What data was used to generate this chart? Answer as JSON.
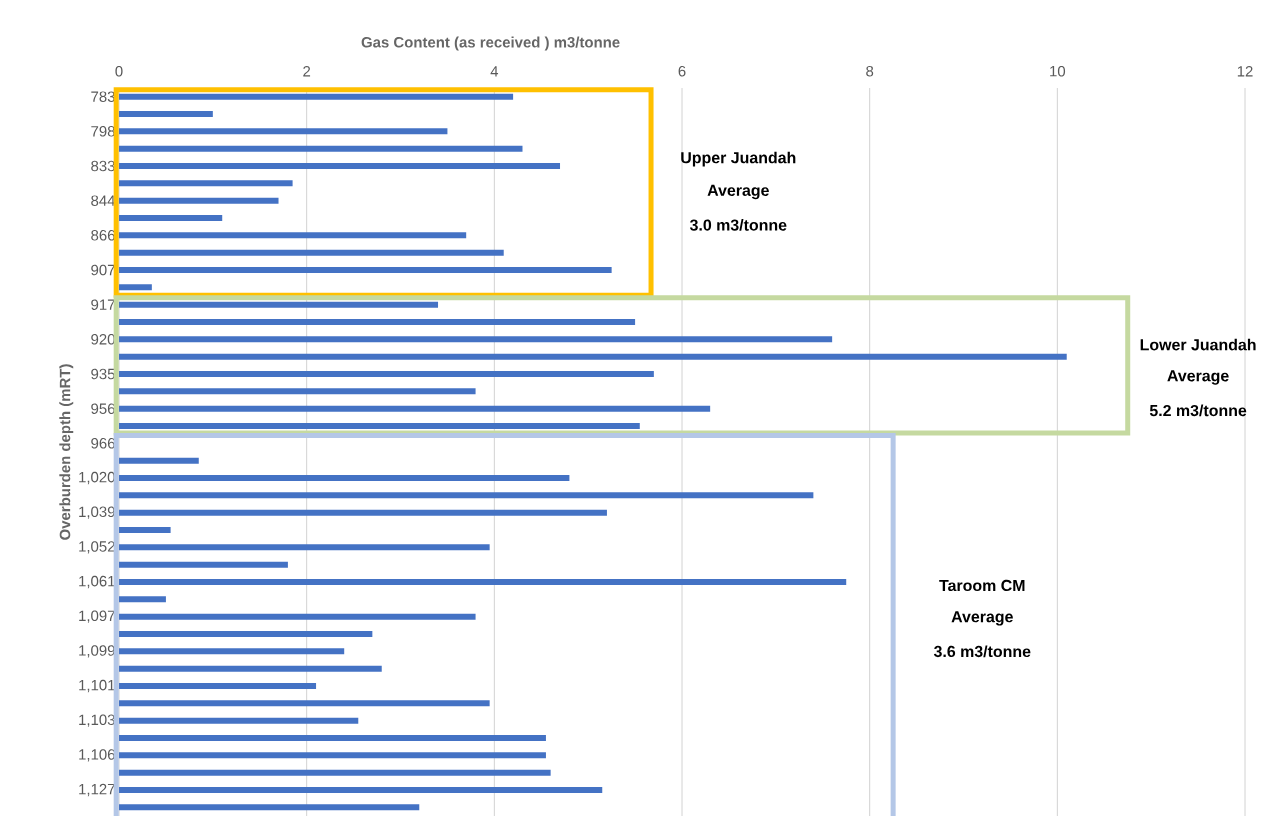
{
  "chart_data": {
    "type": "bar",
    "orientation": "horizontal",
    "xlabel": "Gas Content (as received ) m3/tonne",
    "ylabel": "Overburden depth (mRT)",
    "categories": [
      "783",
      null,
      "798",
      null,
      "833",
      null,
      "844",
      null,
      "866",
      null,
      "907",
      null,
      "917",
      null,
      "920",
      null,
      "935",
      null,
      "956",
      null,
      "966",
      null,
      "1,020",
      null,
      "1,039",
      null,
      "1,052",
      null,
      "1,061",
      null,
      "1,097",
      null,
      "1,099",
      null,
      "1,101",
      null,
      "1,103",
      null,
      "1,106",
      null,
      "1,127",
      null
    ],
    "values": [
      4.2,
      1.0,
      3.5,
      4.3,
      4.7,
      1.85,
      1.7,
      1.1,
      3.7,
      4.1,
      5.25,
      0.35,
      3.4,
      5.5,
      7.6,
      10.1,
      5.7,
      3.8,
      6.3,
      5.55,
      null,
      0.85,
      4.8,
      7.4,
      5.2,
      0.55,
      3.95,
      1.8,
      7.75,
      0.5,
      3.8,
      2.7,
      2.4,
      2.8,
      2.1,
      3.95,
      2.55,
      4.55,
      4.55,
      4.6,
      5.15,
      3.2
    ],
    "color": "#4472c4",
    "xlim": [
      0,
      12
    ],
    "xticks": [
      0,
      2,
      4,
      6,
      8,
      10,
      12
    ],
    "grid": "x",
    "annotations": [
      "Upper Juandah",
      "Average",
      "3.0 m3/tonne",
      "Lower Juandah",
      "Average",
      "5.2 m3/tonne",
      "Taroom CM",
      "Average",
      "3.6 m3/tonne"
    ]
  }
}
